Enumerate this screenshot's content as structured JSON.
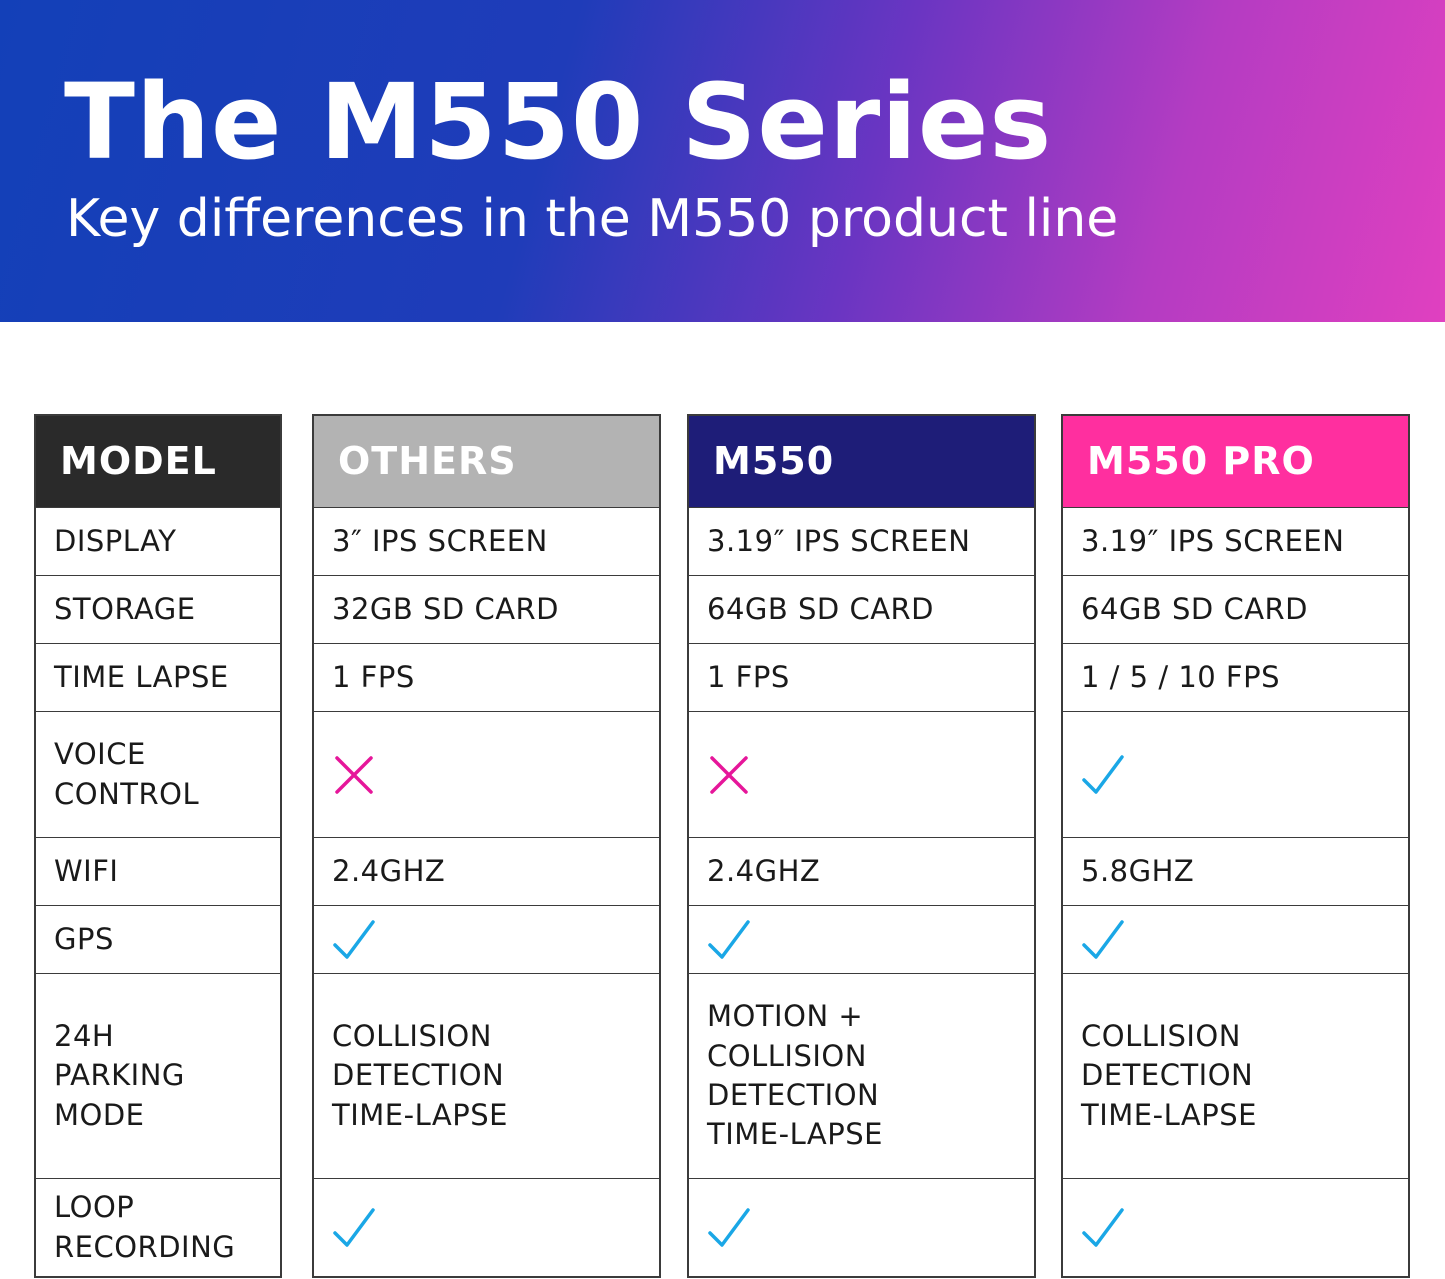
{
  "header": {
    "title": "The M550 Series",
    "subtitle": "Key differences in the M550 product line"
  },
  "colors": {
    "model_header": "#2a2a2a",
    "others_header": "#b3b3b3",
    "m550_header": "#1e1d78",
    "pro_header": "#ff2f9f",
    "check": "#1aa7e6",
    "cross": "#e6169a"
  },
  "table": {
    "headers": [
      "MODEL",
      "OTHERS",
      "M550",
      "M550 PRO"
    ],
    "rows": [
      {
        "feature": "DISPLAY",
        "others": "3″ IPS SCREEN",
        "m550": "3.19″ IPS SCREEN",
        "pro": "3.19″ IPS SCREEN"
      },
      {
        "feature": "STORAGE",
        "others": "32GB SD CARD",
        "m550": "64GB SD CARD",
        "pro": "64GB SD CARD"
      },
      {
        "feature": "TIME LAPSE",
        "others": "1 FPS",
        "m550": "1 FPS",
        "pro": "1 / 5 / 10 FPS"
      },
      {
        "feature": "VOICE\nCONTROL",
        "others": "cross-icon",
        "m550": "cross-icon",
        "pro": "check-icon"
      },
      {
        "feature": "WIFI",
        "others": "2.4GHZ",
        "m550": "2.4GHZ",
        "pro": "5.8GHZ"
      },
      {
        "feature": "GPS",
        "others": "check-icon",
        "m550": "check-icon",
        "pro": "check-icon"
      },
      {
        "feature": "24H\nPARKING\nMODE",
        "others": "COLLISION\nDETECTION\nTIME-LAPSE",
        "m550": "MOTION +\nCOLLISION\nDETECTION\nTIME-LAPSE",
        "pro": "COLLISION\nDETECTION\nTIME-LAPSE"
      },
      {
        "feature": "LOOP\nRECORDING",
        "others": "check-icon",
        "m550": "check-icon",
        "pro": "check-icon"
      }
    ]
  }
}
